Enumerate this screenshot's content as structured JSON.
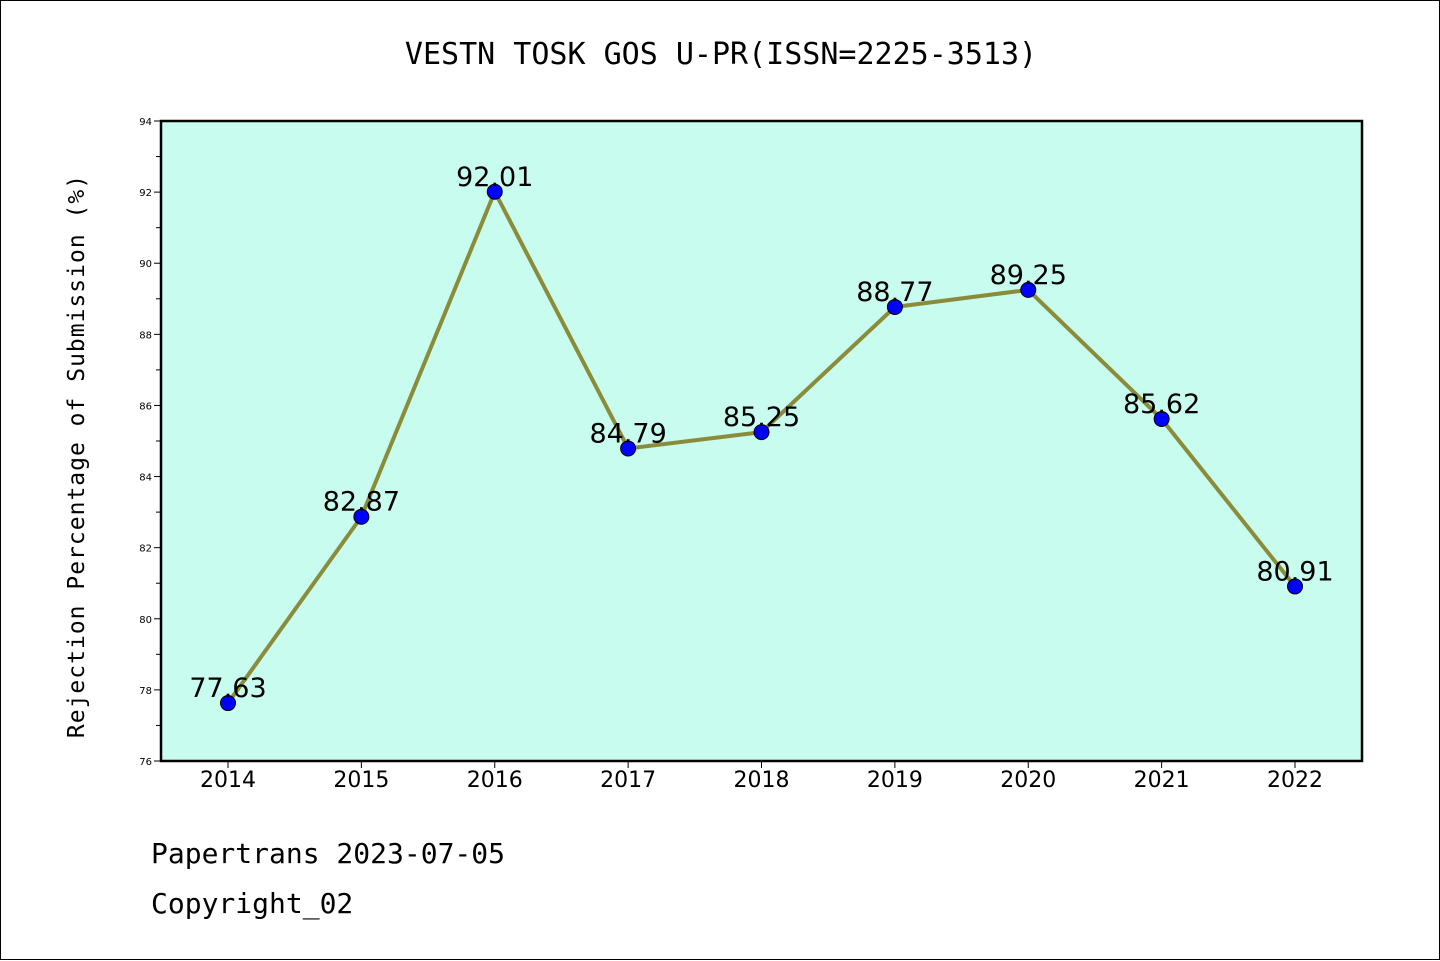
{
  "chart_data": {
    "type": "line",
    "title": "VESTN TOSK GOS U-PR(ISSN=2225-3513)",
    "xlabel": "",
    "ylabel": "Rejection Percentage of Submission (%)",
    "categories": [
      "2014",
      "2015",
      "2016",
      "2017",
      "2018",
      "2019",
      "2020",
      "2021",
      "2022"
    ],
    "series": [
      {
        "values": [
          77.63,
          82.87,
          92.01,
          84.79,
          85.25,
          88.77,
          89.25,
          85.62,
          80.91
        ],
        "labels": [
          "77.63",
          "82.87",
          "92.01",
          "84.79",
          "85.25",
          "88.77",
          "89.25",
          "85.62",
          "80.91"
        ],
        "line_color": "#8b8c3a",
        "marker_color": "#0000ff"
      }
    ],
    "ylim": [
      76,
      94
    ],
    "yticks": [
      "76",
      "78",
      "80",
      "82",
      "84",
      "86",
      "88",
      "90",
      "92",
      "94"
    ],
    "plot_background": "#c8fcee",
    "grid": false,
    "legend": "none"
  },
  "footer": {
    "line1": "Papertrans 2023-07-05",
    "line2": "Copyright_02"
  }
}
